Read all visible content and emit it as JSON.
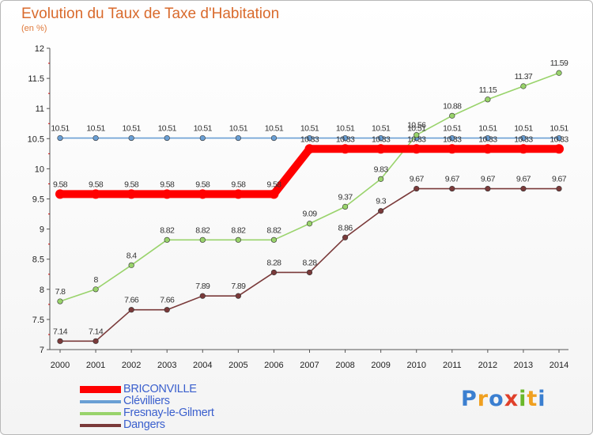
{
  "header": {
    "title": "Evolution du Taux de Taxe d'Habitation",
    "unit": "(en %)"
  },
  "logo": {
    "letters": [
      "P",
      "r",
      "o",
      "x",
      "i",
      "t",
      "i"
    ],
    "colors": [
      "#3b7fd0",
      "#f0a020",
      "#3b7fd0",
      "#e0402a",
      "#6ab82a",
      "#f0a020",
      "#3b7fd0"
    ]
  },
  "chart_data": {
    "type": "line",
    "title": "Evolution du Taux de Taxe d'Habitation",
    "ylabel": "(en %)",
    "xlabel": "",
    "x": [
      "2000",
      "2001",
      "2002",
      "2003",
      "2004",
      "2005",
      "2006",
      "2007",
      "2008",
      "2009",
      "2010",
      "2011",
      "2012",
      "2013",
      "2014"
    ],
    "ylim": [
      7,
      12
    ],
    "yticks": [
      "7",
      "7.5",
      "8",
      "8.5",
      "9",
      "9.5",
      "10",
      "10.5",
      "11",
      "11.5",
      "12"
    ],
    "grid": false,
    "legend": "bottom-left",
    "series": [
      {
        "name": "BRICONVILLE",
        "color": "#ff0000",
        "width": 10,
        "labels": "above",
        "values": [
          9.58,
          9.58,
          9.58,
          9.58,
          9.58,
          9.58,
          9.58,
          10.33,
          10.33,
          10.33,
          10.33,
          10.33,
          10.33,
          10.33,
          10.33
        ],
        "value_labels": [
          "9.58",
          "9.58",
          "9.58",
          "9.58",
          "9.58",
          "9.58",
          "9.58",
          "10.33",
          "10.33",
          "10.33",
          "10.33",
          "10.33",
          "10.33",
          "10.33",
          "10.33"
        ]
      },
      {
        "name": "Clévilliers",
        "color": "#6a9fd4",
        "width": 1.6,
        "labels": "above",
        "values": [
          10.51,
          10.51,
          10.51,
          10.51,
          10.51,
          10.51,
          10.51,
          10.51,
          10.51,
          10.51,
          10.51,
          10.51,
          10.51,
          10.51,
          10.51
        ],
        "value_labels": [
          "10.51",
          "10.51",
          "10.51",
          "10.51",
          "10.51",
          "10.51",
          "10.51",
          "10.51",
          "10.51",
          "10.51",
          "10.51",
          "10.51",
          "10.51",
          "10.51",
          "10.51"
        ]
      },
      {
        "name": "Fresnay-le-Gilmert",
        "color": "#99d36b",
        "width": 1.6,
        "labels": "above",
        "values": [
          7.8,
          8,
          8.4,
          8.82,
          8.82,
          8.82,
          8.82,
          9.09,
          9.37,
          9.83,
          10.56,
          10.88,
          11.15,
          11.37,
          11.59
        ],
        "value_labels": [
          "7.8",
          "8",
          "8.4",
          "8.82",
          "8.82",
          "8.82",
          "8.82",
          "9.09",
          "9.37",
          "9.83",
          "10.56",
          "10.88",
          "11.15",
          "11.37",
          "11.59"
        ]
      },
      {
        "name": "Dangers",
        "color": "#7a3a3a",
        "width": 1.6,
        "labels": "above",
        "values": [
          7.14,
          7.14,
          7.66,
          7.66,
          7.89,
          7.89,
          8.28,
          8.28,
          8.86,
          9.3,
          9.67,
          9.67,
          9.67,
          9.67,
          9.67
        ],
        "value_labels": [
          "7.14",
          "7.14",
          "7.66",
          "7.66",
          "7.89",
          "7.89",
          "8.28",
          "8.28",
          "8.86",
          "9.3",
          "9.67",
          "9.67",
          "9.67",
          "9.67",
          "9.67"
        ]
      }
    ]
  }
}
